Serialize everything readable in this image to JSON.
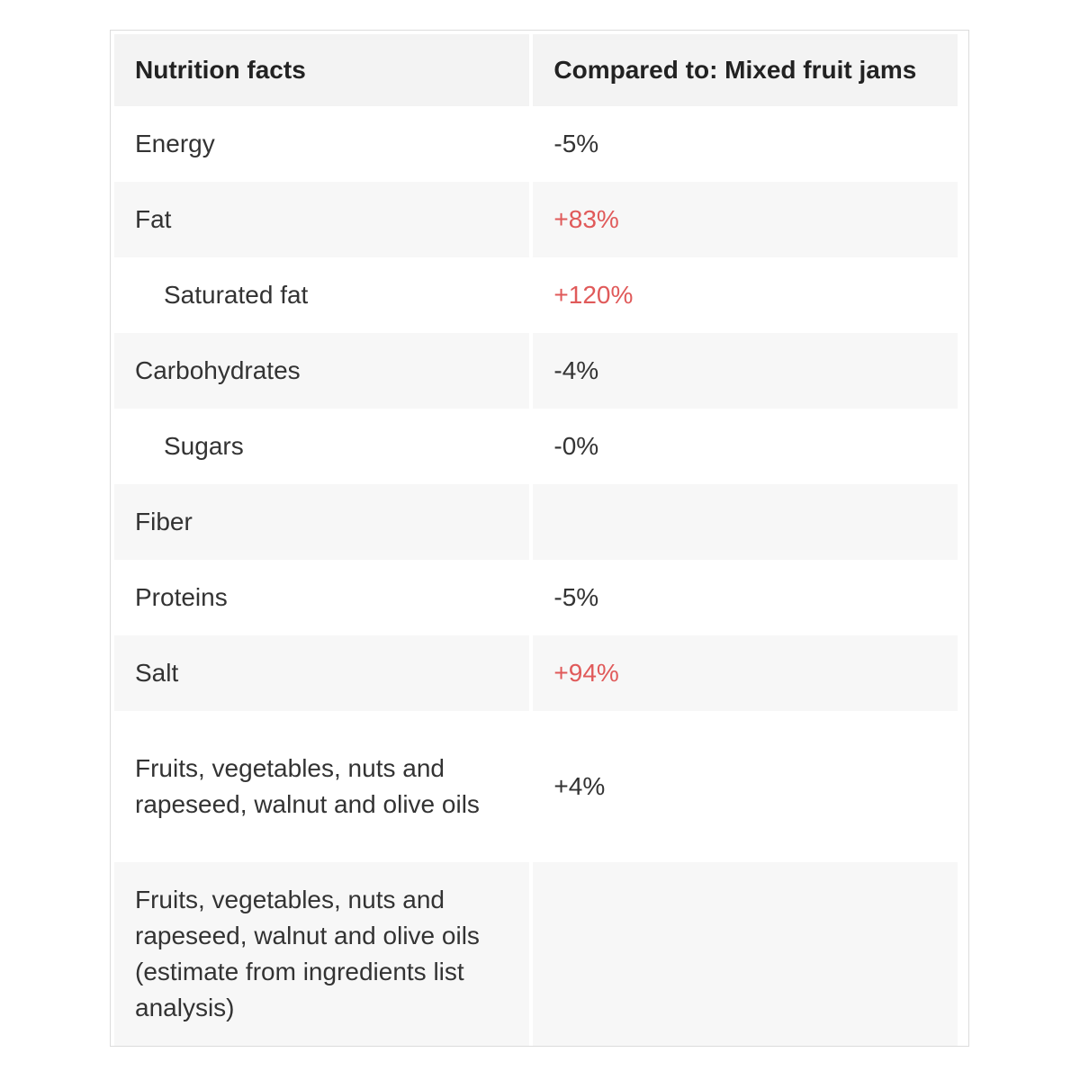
{
  "table": {
    "headers": [
      "Nutrition facts",
      "Compared to: Mixed fruit jams"
    ],
    "rows": [
      {
        "label": "Energy",
        "value": "-5%"
      },
      {
        "label": "Fat",
        "value": "+83%"
      },
      {
        "label": "Saturated fat",
        "value": "+120%"
      },
      {
        "label": "Carbohydrates",
        "value": "-4%"
      },
      {
        "label": "Sugars",
        "value": "-0%"
      },
      {
        "label": "Fiber",
        "value": ""
      },
      {
        "label": "Proteins",
        "value": "-5%"
      },
      {
        "label": "Salt",
        "value": "+94%"
      },
      {
        "label": "Fruits, vegetables, nuts and rapeseed, walnut and olive oils",
        "value": "+4%"
      },
      {
        "label": "Fruits, vegetables, nuts and rapeseed, walnut and olive oils (estimate from ingredients list analysis)",
        "value": ""
      }
    ]
  },
  "colors": {
    "increase": "#e05a5a",
    "neutral": "#333333",
    "header_bg": "#f3f3f3",
    "alt_row_bg": "#f7f7f7"
  }
}
